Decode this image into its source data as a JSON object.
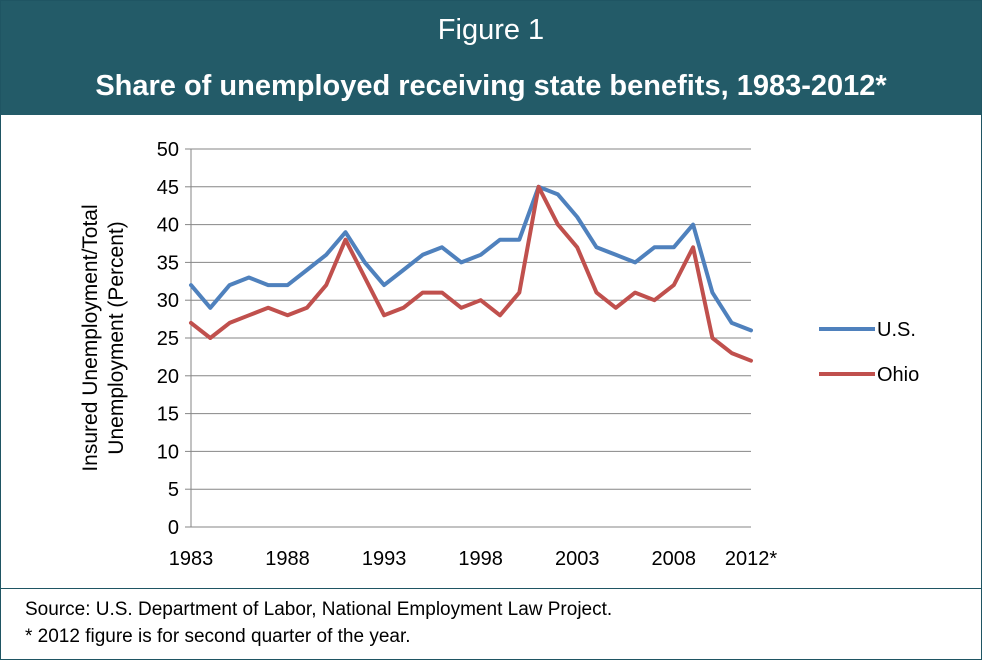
{
  "header": {
    "figure_label": "Figure 1",
    "title": "Share of unemployed receiving state benefits, 1983-2012*"
  },
  "chart_data": {
    "type": "line",
    "title": "Share of unemployed receiving state benefits, 1983-2012*",
    "xlabel": "",
    "ylabel_line1": "Insured Unemployment/Total",
    "ylabel_line2": "Unemployment (Percent)",
    "x": [
      1983,
      1984,
      1985,
      1986,
      1987,
      1988,
      1989,
      1990,
      1991,
      1992,
      1993,
      1994,
      1995,
      1996,
      1997,
      1998,
      1999,
      2000,
      2001,
      2002,
      2003,
      2004,
      2005,
      2006,
      2007,
      2008,
      2009,
      2010,
      2011,
      2012
    ],
    "x_tick_labels": [
      "1983",
      "1988",
      "1993",
      "1998",
      "2003",
      "2008",
      "2012*"
    ],
    "y_tick_labels": [
      "0",
      "5",
      "10",
      "15",
      "20",
      "25",
      "30",
      "35",
      "40",
      "45",
      "50"
    ],
    "ylim": [
      0,
      50
    ],
    "grid": true,
    "legend_placement": "right",
    "series": [
      {
        "name": "U.S.",
        "color": "#4f81bd",
        "values": [
          32,
          29,
          32,
          33,
          32,
          32,
          34,
          36,
          39,
          35,
          32,
          34,
          36,
          37,
          35,
          36,
          38,
          38,
          45,
          44,
          41,
          37,
          36,
          35,
          37,
          37,
          40,
          31,
          27,
          26
        ]
      },
      {
        "name": "Ohio",
        "color": "#c0504d",
        "values": [
          27,
          25,
          27,
          28,
          29,
          28,
          29,
          32,
          38,
          33,
          28,
          29,
          31,
          31,
          29,
          30,
          28,
          31,
          45,
          40,
          37,
          31,
          29,
          31,
          30,
          32,
          37,
          25,
          23,
          22
        ]
      }
    ]
  },
  "footer": {
    "source": "Source: U.S. Department of Labor, National Employment Law Project.",
    "note": "* 2012 figure is for second quarter of the year."
  }
}
